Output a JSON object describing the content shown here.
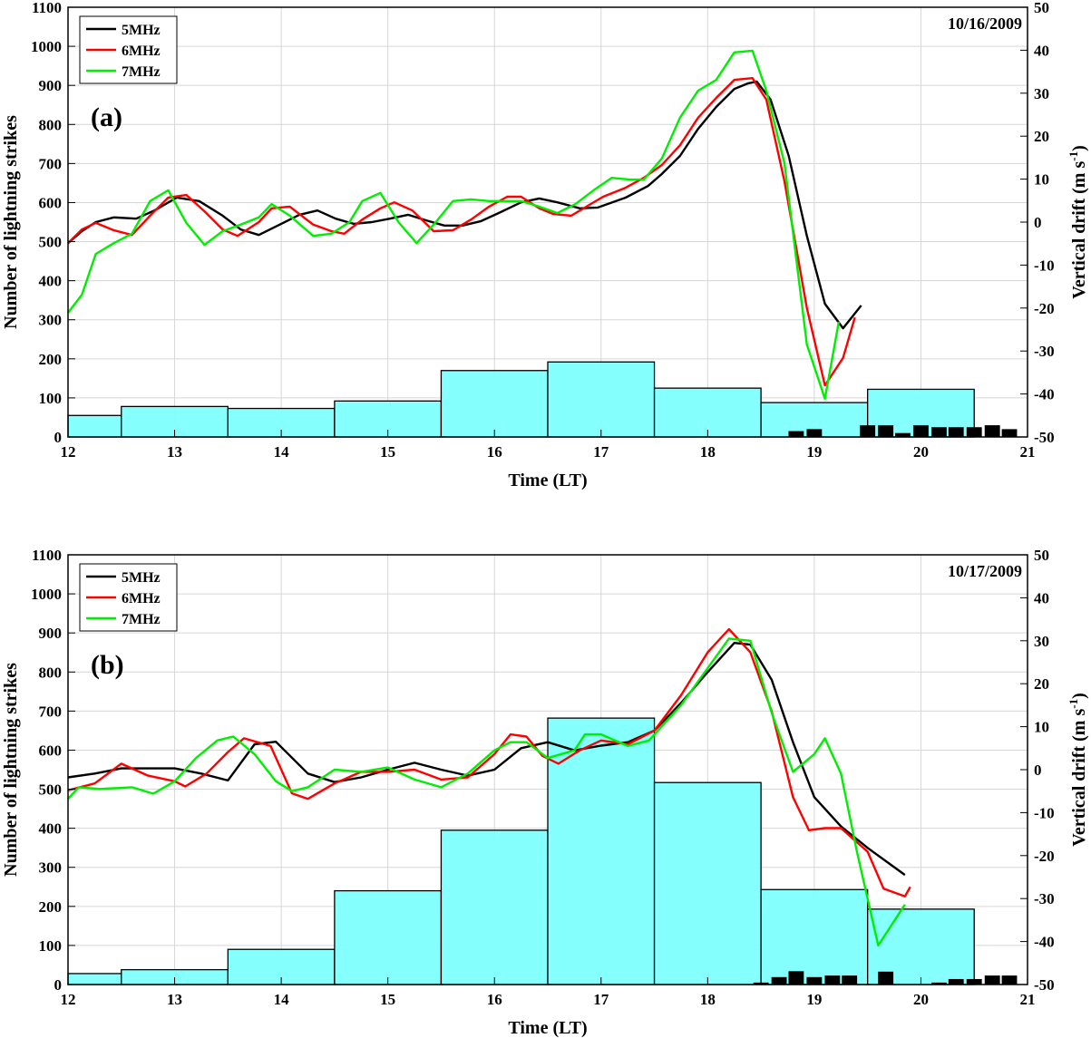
{
  "chart_data": [
    {
      "type": "bar+line",
      "panel_label": "(a)",
      "date": "10/16/2009",
      "xlabel": "Time (LT)",
      "ylabel_left": "Number of  lightning strikes",
      "ylabel_right": "Vertical drift (m s",
      "ylabel_right_sup": "-1",
      "ylabel_right_close": ")",
      "xlim": [
        12,
        21
      ],
      "ylim_left": [
        0,
        1100
      ],
      "ylim_right": [
        -50,
        50
      ],
      "xticks": [
        12,
        13,
        14,
        15,
        16,
        17,
        18,
        19,
        20,
        21
      ],
      "yticks_left": [
        0,
        100,
        200,
        300,
        400,
        500,
        600,
        700,
        800,
        900,
        1000,
        1100
      ],
      "yticks_right": [
        -50,
        -40,
        -30,
        -20,
        -10,
        0,
        10,
        20,
        30,
        40,
        50
      ],
      "grid": true,
      "legend_position": "top-left",
      "hourly_strikes": {
        "x": [
          12,
          13,
          14,
          15,
          16,
          17,
          18,
          19,
          20
        ],
        "values": [
          55,
          78,
          73,
          92,
          170,
          192,
          125,
          88,
          122
        ],
        "color": "#80ffff"
      },
      "tenmin_strikes": {
        "x": [
          18.83,
          19.0,
          19.5,
          19.67,
          19.83,
          20.0,
          20.17,
          20.33,
          20.5,
          20.67,
          20.83
        ],
        "values": [
          15,
          20,
          30,
          30,
          10,
          30,
          25,
          25,
          25,
          30,
          20
        ],
        "color": "#000000"
      },
      "series": [
        {
          "name": "5MHz",
          "color": "#000000",
          "x": [
            12.0,
            12.13,
            12.26,
            12.43,
            12.64,
            12.81,
            13.02,
            13.23,
            13.45,
            13.62,
            13.79,
            14.0,
            14.17,
            14.34,
            14.51,
            14.68,
            14.85,
            15.02,
            15.19,
            15.36,
            15.53,
            15.7,
            15.87,
            16.04,
            16.25,
            16.42,
            16.59,
            16.8,
            16.97,
            17.23,
            17.44,
            17.57,
            17.74,
            17.91,
            18.08,
            18.25,
            18.38,
            18.46,
            18.59,
            18.76,
            18.93,
            19.1,
            19.27,
            19.44
          ],
          "y": [
            -4.9,
            -2.1,
            0,
            1.1,
            0.8,
            2.7,
            5.7,
            4.9,
            1.5,
            -1.7,
            -3.0,
            -0.4,
            1.7,
            2.7,
            0.8,
            -0.4,
            0,
            0.8,
            1.7,
            0.4,
            -0.8,
            -0.8,
            0.2,
            2.1,
            4.6,
            5.5,
            4.6,
            3.2,
            3.4,
            5.7,
            8.4,
            11.2,
            15.4,
            21.7,
            26.8,
            31.0,
            32.3,
            32.7,
            28.5,
            15.4,
            -3.2,
            -19.0,
            -24.7,
            -19.4
          ]
        },
        {
          "name": "6MHz",
          "color": "#ff0000",
          "x": [
            12.0,
            12.13,
            12.26,
            12.43,
            12.6,
            12.77,
            12.94,
            13.11,
            13.28,
            13.45,
            13.59,
            13.79,
            13.91,
            14.08,
            14.3,
            14.47,
            14.59,
            14.76,
            14.93,
            15.06,
            15.23,
            15.43,
            15.61,
            15.78,
            15.95,
            16.12,
            16.25,
            16.42,
            16.55,
            16.72,
            16.89,
            17.02,
            17.23,
            17.4,
            17.57,
            17.74,
            17.91,
            18.08,
            18.25,
            18.42,
            18.55,
            18.72,
            18.93,
            19.1,
            19.27,
            19.38
          ],
          "y": [
            -4.9,
            -1.7,
            -0.2,
            -1.9,
            -3.0,
            1.5,
            5.7,
            6.3,
            2.5,
            -1.7,
            -3.2,
            0,
            3.2,
            3.6,
            -0.6,
            -2.1,
            -2.7,
            0.6,
            3.2,
            4.6,
            2.7,
            -2.1,
            -1.9,
            0.6,
            3.6,
            5.9,
            5.9,
            3.2,
            1.9,
            1.5,
            4.0,
            5.9,
            8.0,
            10.3,
            13.3,
            17.9,
            24.3,
            28.9,
            33.1,
            33.5,
            28.5,
            9.5,
            -20.0,
            -38.0,
            -31.6,
            -22.2
          ]
        },
        {
          "name": "7MHz",
          "color": "#00ee00",
          "x": [
            12.0,
            12.13,
            12.26,
            12.43,
            12.6,
            12.77,
            12.94,
            13.11,
            13.28,
            13.45,
            13.62,
            13.79,
            13.91,
            14.08,
            14.3,
            14.47,
            14.64,
            14.76,
            14.93,
            15.1,
            15.27,
            15.45,
            15.61,
            15.78,
            15.95,
            16.12,
            16.25,
            16.42,
            16.59,
            16.76,
            16.93,
            17.1,
            17.27,
            17.4,
            17.57,
            17.74,
            17.91,
            18.08,
            18.25,
            18.42,
            18.55,
            18.72,
            18.93,
            19.1,
            19.23
          ],
          "y": [
            -21.1,
            -16.9,
            -7.4,
            -4.9,
            -2.7,
            4.9,
            7.4,
            -0.2,
            -5.3,
            -2.1,
            -0.6,
            1.1,
            4.2,
            1.5,
            -3.2,
            -2.7,
            0,
            4.9,
            6.8,
            0,
            -4.9,
            0,
            4.9,
            5.3,
            4.9,
            4.9,
            4.9,
            3.6,
            2.1,
            4.2,
            7.4,
            10.3,
            9.9,
            9.9,
            14.8,
            24.3,
            30.6,
            33.1,
            39.5,
            39.9,
            30.6,
            13.7,
            -28.5,
            -41.1,
            -23.2
          ]
        }
      ]
    },
    {
      "type": "bar+line",
      "panel_label": "(b)",
      "date": "10/17/2009",
      "xlabel": "Time (LT)",
      "ylabel_left": "Number of  lightning strikes",
      "ylabel_right": "Vertical drift (m s",
      "ylabel_right_sup": "-1",
      "ylabel_right_close": ")",
      "xlim": [
        12,
        21
      ],
      "ylim_left": [
        0,
        1100
      ],
      "ylim_right": [
        -50,
        50
      ],
      "xticks": [
        12,
        13,
        14,
        15,
        16,
        17,
        18,
        19,
        20,
        21
      ],
      "yticks_left": [
        0,
        100,
        200,
        300,
        400,
        500,
        600,
        700,
        800,
        900,
        1000,
        1100
      ],
      "yticks_right": [
        -50,
        -40,
        -30,
        -20,
        -10,
        0,
        10,
        20,
        30,
        40,
        50
      ],
      "grid": true,
      "legend_position": "top-left",
      "hourly_strikes": {
        "x": [
          12,
          13,
          14,
          15,
          16,
          17,
          18,
          19,
          20
        ],
        "values": [
          28,
          38,
          90,
          240,
          395,
          682,
          517,
          243,
          193
        ],
        "color": "#80ffff"
      },
      "tenmin_strikes": {
        "x": [
          18.5,
          18.67,
          18.83,
          19.0,
          19.17,
          19.33,
          19.67,
          20.17,
          20.33,
          20.5,
          20.67,
          20.83
        ],
        "values": [
          5,
          19,
          34,
          19,
          23,
          23,
          33,
          5,
          14,
          14,
          23,
          23
        ],
        "color": "#000000"
      },
      "series": [
        {
          "name": "5MHz",
          "color": "#000000",
          "x": [
            12.0,
            12.25,
            12.5,
            12.75,
            13.0,
            13.25,
            13.5,
            13.75,
            13.95,
            14.25,
            14.5,
            14.75,
            15.0,
            15.25,
            15.5,
            15.75,
            16.0,
            16.25,
            16.5,
            16.75,
            17.0,
            17.25,
            17.5,
            17.75,
            18.0,
            18.25,
            18.4,
            18.6,
            18.8,
            19.0,
            19.25,
            19.5,
            19.75,
            19.85
          ],
          "y": [
            -1.8,
            -0.9,
            0.3,
            0.3,
            0.3,
            -0.9,
            -2.5,
            5.9,
            6.5,
            -0.9,
            -2.9,
            -1.8,
            0,
            1.6,
            0,
            -1.4,
            0,
            5.0,
            6.4,
            4.5,
            5.6,
            6.4,
            9.1,
            15.5,
            22.7,
            29.5,
            29.1,
            20.9,
            6.4,
            -6.4,
            -13.2,
            -18.2,
            -22.7,
            -24.5
          ]
        },
        {
          "name": "6MHz",
          "color": "#ff0000",
          "x": [
            12.0,
            12.25,
            12.5,
            12.75,
            13.0,
            13.1,
            13.3,
            13.5,
            13.65,
            13.9,
            14.1,
            14.25,
            14.5,
            14.75,
            15.0,
            15.25,
            15.5,
            15.75,
            16.0,
            16.15,
            16.3,
            16.45,
            16.6,
            16.8,
            17.0,
            17.25,
            17.5,
            17.75,
            18.0,
            18.2,
            18.4,
            18.6,
            18.8,
            18.95,
            19.1,
            19.25,
            19.5,
            19.65,
            19.85,
            19.9
          ],
          "y": [
            -4.8,
            -3.2,
            1.4,
            -1.4,
            -2.7,
            -3.9,
            -0.9,
            4.1,
            7.3,
            5.5,
            -5.5,
            -6.8,
            -3.2,
            -0.5,
            -0.5,
            0,
            -2.3,
            -1.8,
            3.6,
            8.2,
            7.7,
            3.2,
            1.4,
            4.5,
            6.8,
            5.9,
            9.1,
            17.3,
            27.3,
            32.7,
            27.3,
            13.6,
            -6.4,
            -14.1,
            -13.6,
            -13.6,
            -19.1,
            -27.7,
            -29.5,
            -27.3
          ]
        },
        {
          "name": "7MHz",
          "color": "#00ee00",
          "x": [
            12.0,
            12.1,
            12.3,
            12.6,
            12.8,
            13.0,
            13.2,
            13.4,
            13.55,
            13.75,
            13.95,
            14.1,
            14.25,
            14.5,
            14.75,
            15.0,
            15.25,
            15.5,
            15.75,
            16.0,
            16.15,
            16.3,
            16.5,
            16.75,
            16.85,
            17.0,
            17.25,
            17.45,
            17.75,
            18.0,
            18.2,
            18.4,
            18.6,
            18.8,
            19.0,
            19.1,
            19.25,
            19.4,
            19.6,
            19.85
          ],
          "y": [
            -6.8,
            -4.1,
            -4.5,
            -4.1,
            -5.6,
            -2.7,
            2.7,
            6.8,
            7.7,
            3.6,
            -2.7,
            -5.0,
            -4.1,
            0,
            -0.5,
            0.5,
            -2.3,
            -4.1,
            -0.9,
            4.5,
            6.4,
            6.4,
            2.7,
            4.5,
            8.2,
            8.2,
            5.5,
            6.8,
            15.0,
            23.6,
            30.5,
            30.0,
            13.2,
            -0.5,
            3.6,
            7.3,
            -0.9,
            -19.1,
            -40.9,
            -31.4
          ]
        }
      ]
    }
  ]
}
